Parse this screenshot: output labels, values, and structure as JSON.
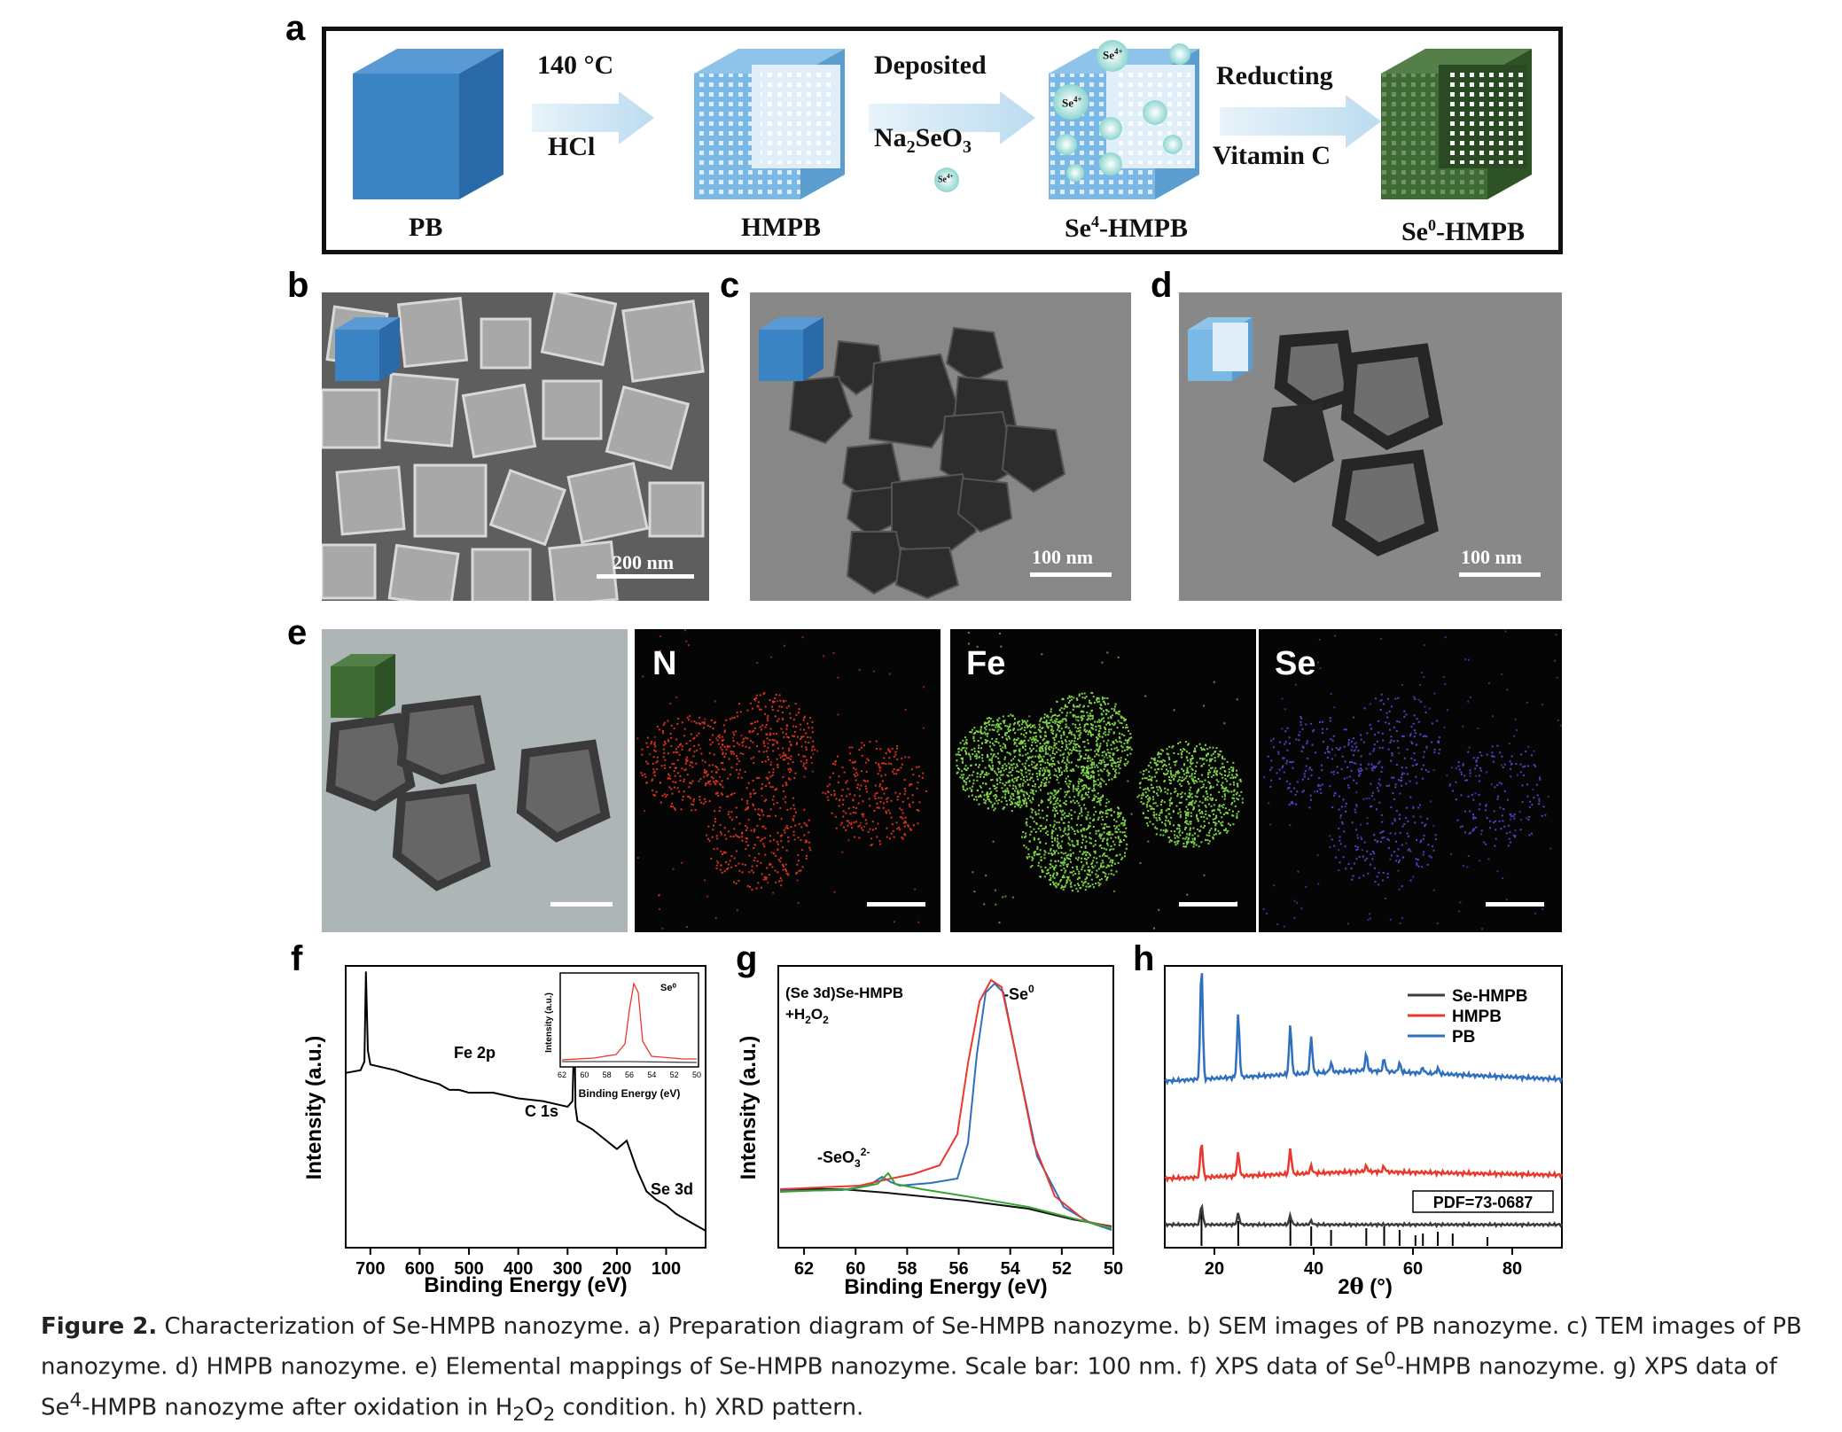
{
  "panels": {
    "a": "a",
    "b": "b",
    "c": "c",
    "d": "d",
    "e": "e",
    "f": "f",
    "g": "g",
    "h": "h"
  },
  "scheme": {
    "step1_top": "140 °C",
    "step1_bottom": "HCl",
    "step2_top": "Deposited",
    "step2_bottom_main": "Na",
    "step2_bottom_sub1": "2",
    "step2_bottom_mid": "SeO",
    "step2_bottom_sub2": "3",
    "step3_top": "Reducting",
    "step3_bottom": "Vitamin C",
    "ion": "Se",
    "ion_charge": "4+",
    "lbl_pb": "PB",
    "lbl_hmpb": "HMPB",
    "lbl_se4_a": "Se",
    "lbl_se4_sup": "4",
    "lbl_se4_b": "-HMPB",
    "lbl_se0_a": "Se",
    "lbl_se0_sup": "0",
    "lbl_se0_b": "-HMPB",
    "colors": {
      "blue": "#3a84c4",
      "green": "#3d6b33",
      "arrow": "#cfe6f4"
    }
  },
  "scalebars": {
    "b": "200 nm",
    "c": "100 nm",
    "d": "100 nm"
  },
  "mapping": {
    "n": "N",
    "fe": "Fe",
    "se": "Se"
  },
  "caption": {
    "fig": "Figure 2.",
    "t1": " Characterization of Se-HMPB nanozyme. a) Preparation diagram of Se-HMPB nanozyme. b) SEM images of PB nanozyme. c) TEM images of PB nanozyme. d) HMPB nanozyme. e) Elemental mappings of Se-HMPB nanozyme. Scale bar: 100 nm. f) XPS data of Se",
    "sup0": "0",
    "t2": "-HMPB nanozyme. g) XPS data of Se",
    "sup4": "4",
    "t3": "-HMPB nanozyme after oxidation in H",
    "sub2a": "2",
    "t4": "O",
    "sub2b": "2",
    "t5": " condition. h) XRD pattern."
  },
  "chart_data": [
    {
      "type": "line",
      "panel": "f",
      "xlabel": "Binding Energy (eV)",
      "ylabel": "Intensity (a.u.)",
      "xlim": [
        750,
        20
      ],
      "xticks": [
        700,
        600,
        500,
        400,
        300,
        200,
        100
      ],
      "peak_labels": [
        {
          "text": "Fe 2p",
          "x": 710
        },
        {
          "text": "C 1s",
          "x": 285
        },
        {
          "text": "Se 3d",
          "x": 55
        }
      ],
      "series": [
        {
          "values_x": [
            750,
            720,
            712,
            709,
            705,
            700,
            650,
            600,
            560,
            540,
            530,
            520,
            500,
            450,
            400,
            350,
            300,
            290,
            286,
            284,
            280,
            250,
            200,
            180,
            160,
            140,
            120,
            100,
            80,
            60,
            40,
            20
          ],
          "values_y": [
            0.62,
            0.63,
            0.66,
            0.98,
            0.7,
            0.65,
            0.63,
            0.6,
            0.58,
            0.56,
            0.56,
            0.56,
            0.55,
            0.55,
            0.53,
            0.52,
            0.5,
            0.52,
            0.8,
            0.5,
            0.45,
            0.42,
            0.35,
            0.38,
            0.28,
            0.2,
            0.17,
            0.15,
            0.12,
            0.1,
            0.08,
            0.06
          ]
        }
      ],
      "inset": {
        "xlabel": "Binding Energy (eV)",
        "ylabel": "Intensity (a.u.)",
        "xlim": [
          62,
          50
        ],
        "xticks": [
          62,
          60,
          58,
          56,
          54,
          52,
          50
        ],
        "label": "Se⁰"
      }
    },
    {
      "type": "line",
      "panel": "g",
      "title": "(Se 3d)Se-HMPB +H2O2",
      "xlabel": "Binding Energy (eV)",
      "ylabel": "Intensity (a.u.)",
      "xlim": [
        63,
        50
      ],
      "xticks": [
        62,
        60,
        58,
        56,
        54,
        52,
        50
      ],
      "annotations": [
        {
          "text": "-Se⁰",
          "x": 55.6
        },
        {
          "text": "-SeO3 2-",
          "x": 59.3
        }
      ]
    },
    {
      "type": "line",
      "panel": "h",
      "xlabel": "2θ (°)",
      "xlim": [
        10,
        90
      ],
      "xticks": [
        20,
        40,
        60,
        80
      ],
      "legend": "top-right",
      "series": [
        {
          "name": "Se-HMPB",
          "color": "#3c3c3c"
        },
        {
          "name": "HMPB",
          "color": "#e8392c"
        },
        {
          "name": "PB",
          "color": "#2f6fbf"
        }
      ],
      "reference_label": "PDF=73-0687",
      "reference_peaks": [
        17.4,
        24.8,
        35.3,
        39.5,
        43.5,
        50.6,
        54.2,
        57.3,
        60.5,
        62,
        65,
        68,
        75
      ]
    }
  ]
}
